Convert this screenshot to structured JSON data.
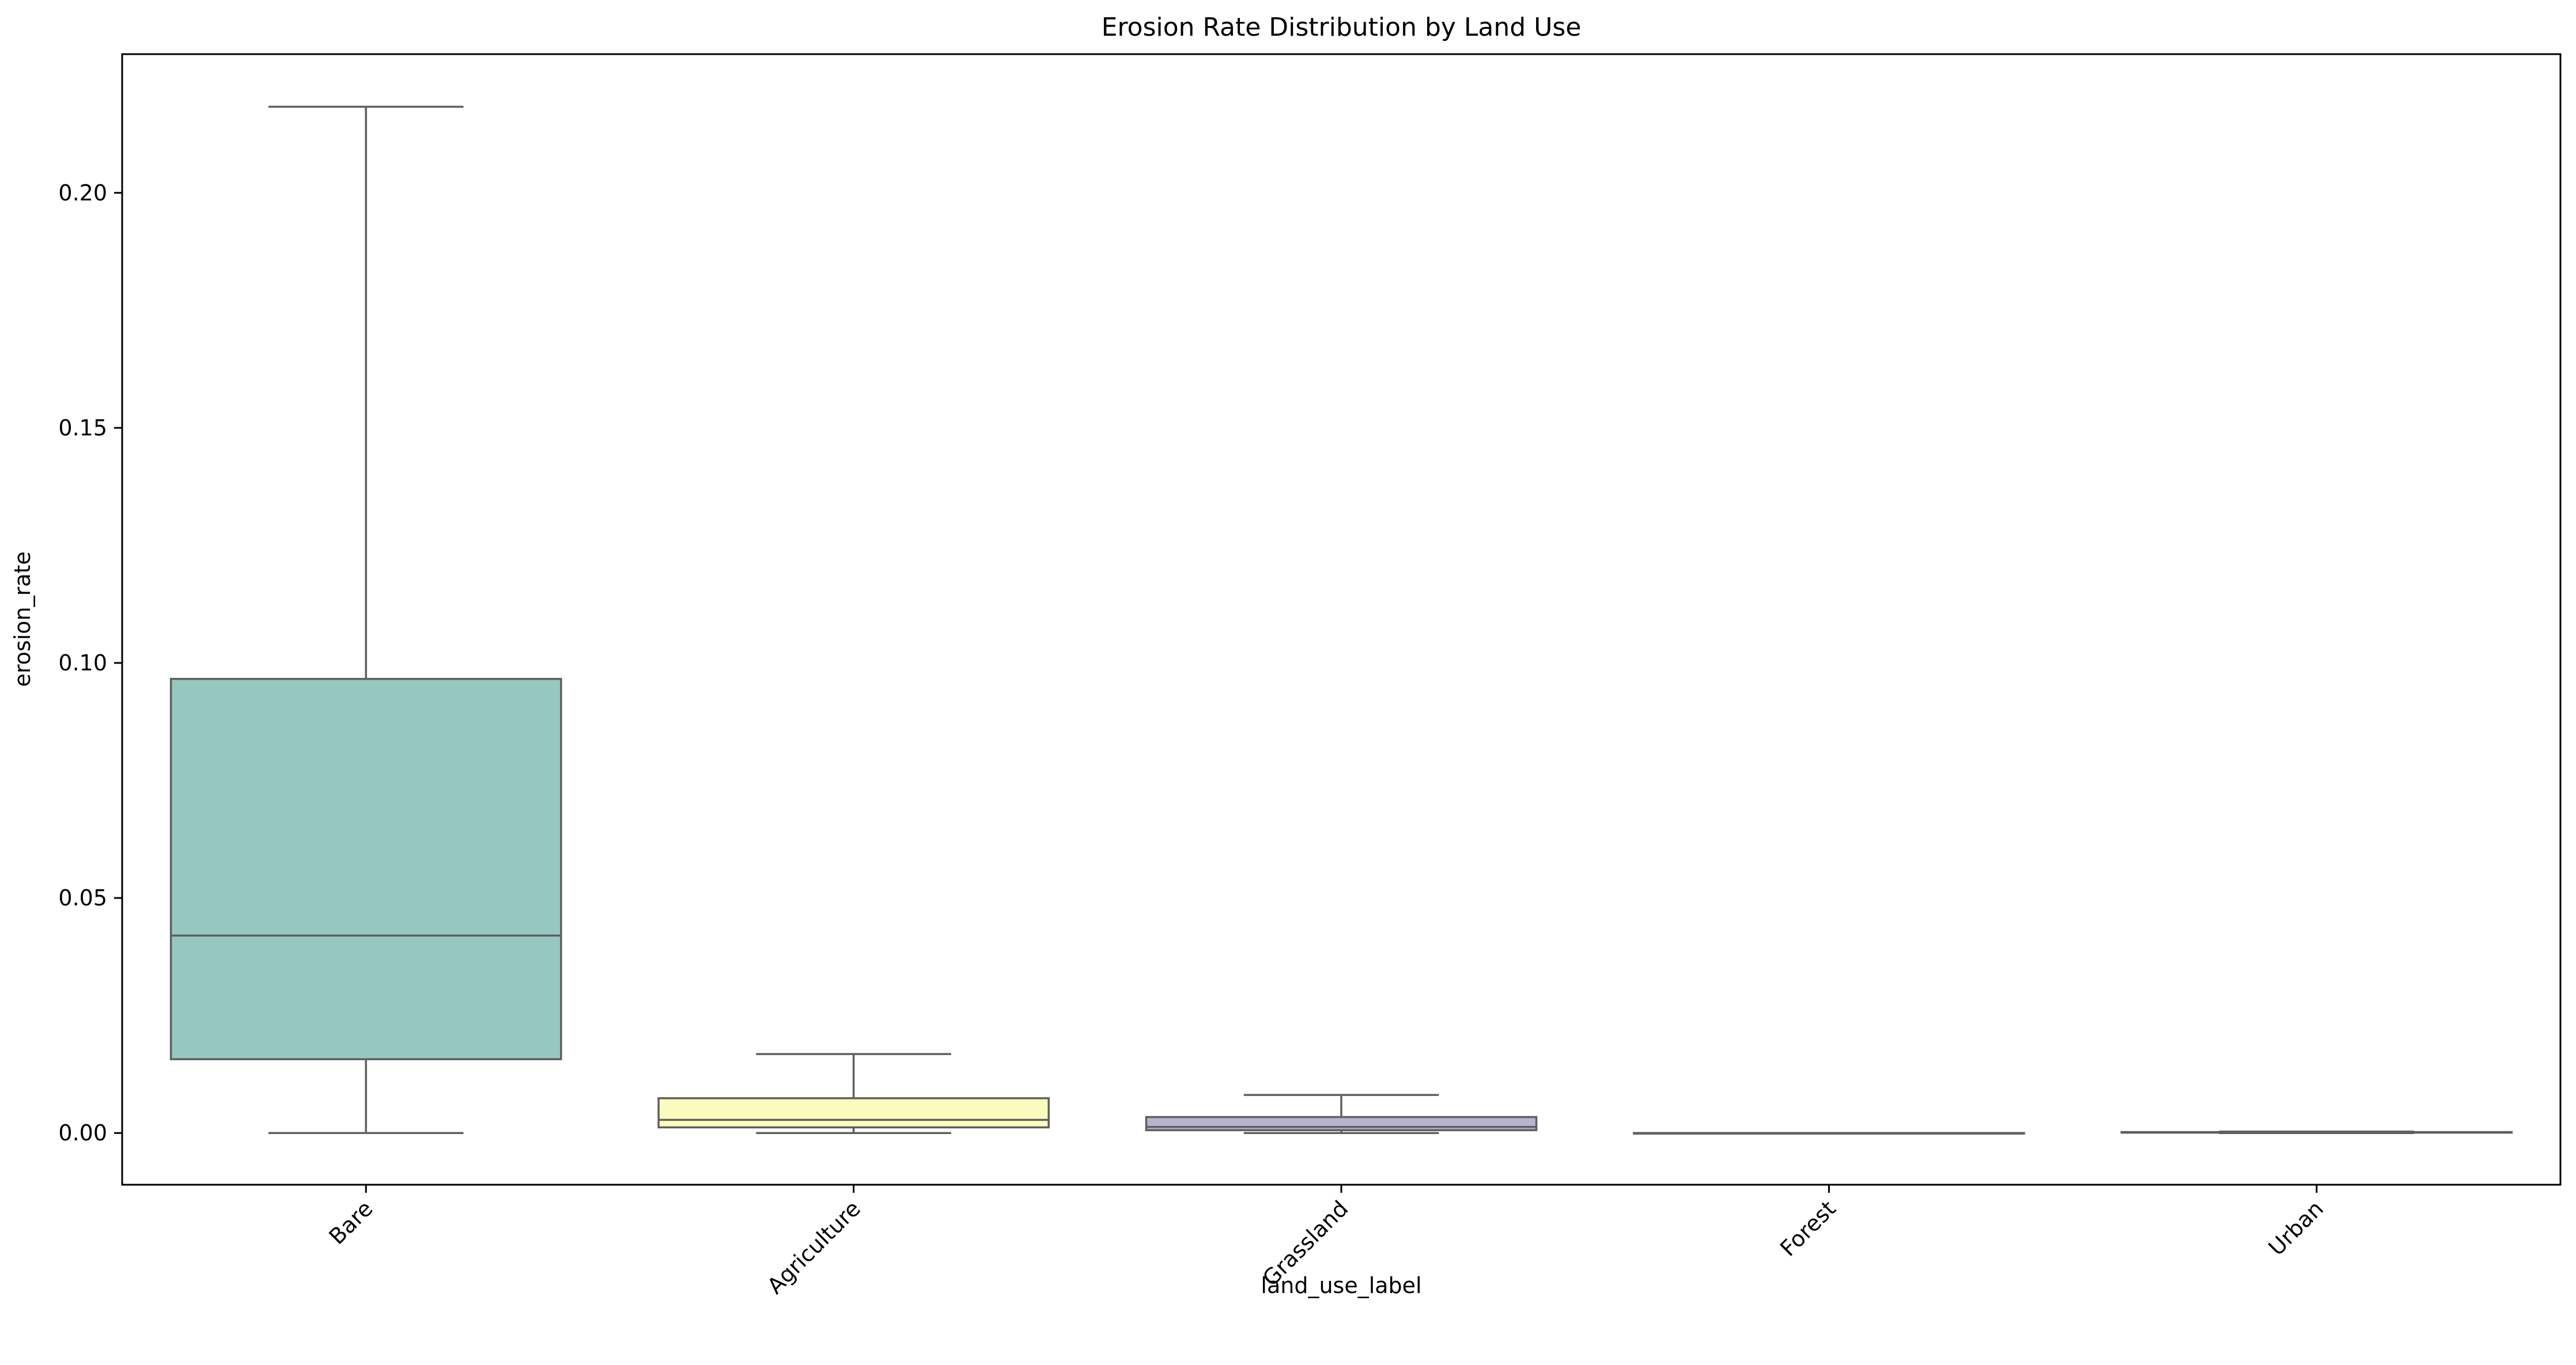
{
  "chart_data": {
    "type": "box",
    "title": "Erosion Rate Distribution by Land Use",
    "xlabel": "land_use_label",
    "ylabel": "erosion_rate",
    "ylim": [
      -0.011,
      0.2295
    ],
    "yticks": [
      0.0,
      0.05,
      0.1,
      0.15,
      0.2
    ],
    "ytick_labels": [
      "0.00",
      "0.05",
      "0.10",
      "0.15",
      "0.20"
    ],
    "grid": false,
    "legend": "none",
    "categories": [
      "Bare",
      "Agriculture",
      "Grassland",
      "Forest",
      "Urban"
    ],
    "boxes": [
      {
        "category": "Bare",
        "whisker_low": 0.0,
        "q1": 0.0157,
        "median": 0.042,
        "q3": 0.0966,
        "whisker_high": 0.2183,
        "color": "#96c8c0"
      },
      {
        "category": "Agriculture",
        "whisker_low": 0.0,
        "q1": 0.0012,
        "median": 0.0028,
        "q3": 0.0074,
        "whisker_high": 0.0168,
        "color": "#fbfbbe"
      },
      {
        "category": "Grassland",
        "whisker_low": 0.0,
        "q1": 0.0006,
        "median": 0.0013,
        "q3": 0.0034,
        "whisker_high": 0.0081,
        "color": "#b8b4d2"
      },
      {
        "category": "Forest",
        "whisker_low": 0.0,
        "q1": 0.0,
        "median": 0.0,
        "q3": 0.0,
        "whisker_high": 0.0,
        "color": "#e88c82"
      },
      {
        "category": "Urban",
        "whisker_low": 0.0,
        "q1": 0.0001,
        "median": 0.0001,
        "q3": 0.0002,
        "whisker_high": 0.0003,
        "color": "#86a8c6"
      }
    ],
    "line_color": "#5f5f5f"
  }
}
